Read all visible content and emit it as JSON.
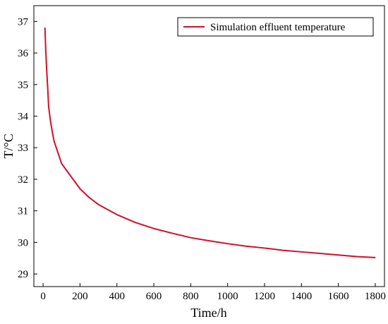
{
  "chart_data": {
    "type": "line",
    "title": "",
    "xlabel": "Time/h",
    "ylabel": "T/°C",
    "xlim": [
      -50,
      1850
    ],
    "ylim": [
      28.6,
      37.5
    ],
    "xticks": [
      0,
      200,
      400,
      600,
      800,
      1000,
      1200,
      1400,
      1600,
      1800
    ],
    "yticks": [
      29,
      30,
      31,
      32,
      33,
      34,
      35,
      36,
      37
    ],
    "grid": false,
    "legend_position": "top-right",
    "series": [
      {
        "name": "Simulation effluent temperature",
        "color": "#d0102a",
        "x": [
          10,
          15,
          20,
          25,
          30,
          40,
          50,
          60,
          80,
          100,
          150,
          200,
          250,
          300,
          400,
          500,
          600,
          700,
          800,
          900,
          1000,
          1100,
          1200,
          1300,
          1400,
          1500,
          1600,
          1700,
          1800
        ],
        "y": [
          36.8,
          36.0,
          35.4,
          34.9,
          34.3,
          33.85,
          33.5,
          33.2,
          32.85,
          32.5,
          32.1,
          31.7,
          31.42,
          31.2,
          30.88,
          30.63,
          30.44,
          30.29,
          30.15,
          30.05,
          29.96,
          29.88,
          29.82,
          29.75,
          29.7,
          29.65,
          29.6,
          29.55,
          29.52
        ]
      }
    ]
  }
}
